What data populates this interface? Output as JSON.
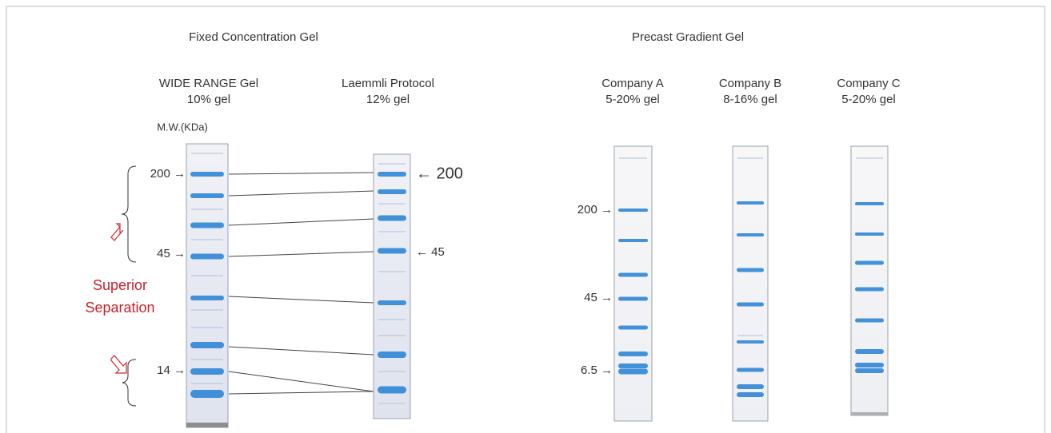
{
  "left_panel": {
    "title": "Fixed Concentration Gel",
    "lanes": [
      {
        "name": "WIDE RANGE Gel",
        "gel": "10% gel"
      },
      {
        "name": "Laemmli Protocol",
        "gel": "12% gel"
      }
    ],
    "axis_label": "M.W.(KDa)",
    "left_markers": [
      "200 →",
      "45 →",
      "14 →"
    ],
    "right_markers": [
      "← 200",
      "← 45"
    ],
    "annotation": [
      "Superior",
      "Separation"
    ]
  },
  "right_panel": {
    "title": "Precast Gradient Gel",
    "lanes": [
      {
        "name": "Company A",
        "gel": "5-20% gel"
      },
      {
        "name": "Company B",
        "gel": "8-16% gel"
      },
      {
        "name": "Company C",
        "gel": "5-20% gel"
      }
    ],
    "markers": [
      "200 →",
      "45 →",
      "6.5 →"
    ]
  }
}
